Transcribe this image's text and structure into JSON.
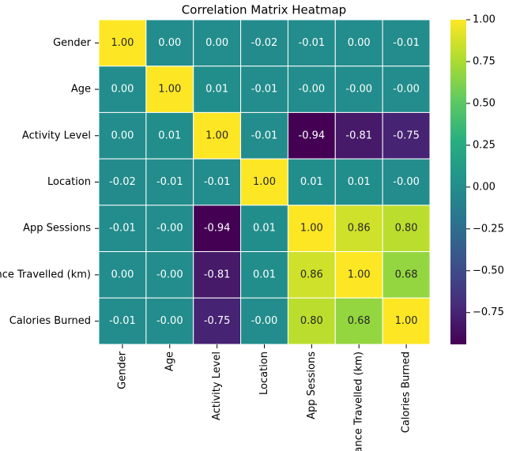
{
  "chart_data": {
    "type": "heatmap",
    "title": "Correlation Matrix Heatmap",
    "x_categories": [
      "Gender",
      "Age",
      "Activity Level",
      "Location",
      "App Sessions",
      "Distance Travelled (km)",
      "Calories Burned"
    ],
    "y_categories": [
      "Gender",
      "Age",
      "Activity Level",
      "Location",
      "App Sessions",
      "Distance Travelled (km)",
      "Calories Burned"
    ],
    "values": [
      [
        1,
        0,
        0,
        -0.02,
        -0.01,
        0,
        -0.01
      ],
      [
        0,
        1,
        0.01,
        -0.01,
        0,
        0,
        0
      ],
      [
        0,
        0.01,
        1,
        -0.01,
        -0.94,
        -0.81,
        -0.75
      ],
      [
        -0.02,
        -0.01,
        -0.01,
        1,
        0.01,
        0.01,
        0
      ],
      [
        -0.01,
        0,
        -0.94,
        0.01,
        1,
        0.86,
        0.8
      ],
      [
        0,
        0,
        -0.81,
        0.01,
        0.86,
        1,
        0.68
      ],
      [
        -0.01,
        0,
        -0.75,
        0,
        0.8,
        0.68,
        1
      ]
    ],
    "value_labels": [
      [
        "1.00",
        "0.00",
        "0.00",
        "-0.02",
        "-0.01",
        "0.00",
        "-0.01"
      ],
      [
        "0.00",
        "1.00",
        "0.01",
        "-0.01",
        "-0.00",
        "-0.00",
        "-0.00"
      ],
      [
        "0.00",
        "0.01",
        "1.00",
        "-0.01",
        "-0.94",
        "-0.81",
        "-0.75"
      ],
      [
        "-0.02",
        "-0.01",
        "-0.01",
        "1.00",
        "0.01",
        "0.01",
        "-0.00"
      ],
      [
        "-0.01",
        "-0.00",
        "-0.94",
        "0.01",
        "1.00",
        "0.86",
        "0.80"
      ],
      [
        "0.00",
        "-0.00",
        "-0.81",
        "0.01",
        "0.86",
        "1.00",
        "0.68"
      ],
      [
        "-0.01",
        "-0.00",
        "-0.75",
        "-0.00",
        "0.80",
        "0.68",
        "1.00"
      ]
    ],
    "colormap": "viridis",
    "colorbar_lim": [
      -0.94,
      1
    ],
    "colorbar_ticks": [
      {
        "value": 1,
        "label": "1.00"
      },
      {
        "value": 0.75,
        "label": "0.75"
      },
      {
        "value": 0.5,
        "label": "0.50"
      },
      {
        "value": 0.25,
        "label": "0.25"
      },
      {
        "value": 0,
        "label": "0.00"
      },
      {
        "value": -0.25,
        "label": "−0.25"
      },
      {
        "value": -0.5,
        "label": "−0.50"
      },
      {
        "value": -0.75,
        "label": "−0.75"
      }
    ]
  }
}
